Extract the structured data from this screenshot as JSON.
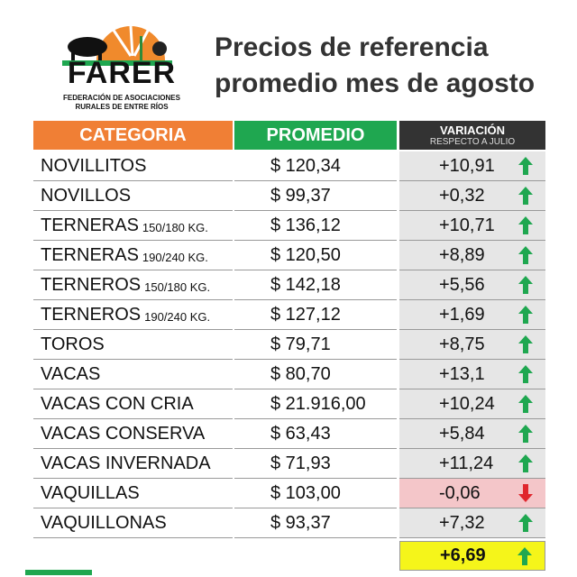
{
  "logo": {
    "name": "FARER",
    "subtitle_1": "FEDERACIÓN DE ASOCIACIONES",
    "subtitle_2": "RURALES DE ENTRE RÍOS"
  },
  "header": {
    "title_1": "Precios de referencia",
    "title_2": "promedio mes de agosto"
  },
  "table": {
    "columns": {
      "category": "CATEGORIA",
      "average": "PROMEDIO",
      "variation": "VARIACIÓN",
      "variation_note": "RESPECTO A JULIO"
    },
    "rows": [
      {
        "category": "NOVILLITOS",
        "price": "$ 120,34",
        "variation": "+10,91"
      },
      {
        "category": "NOVILLOS",
        "price": "$ 99,37",
        "variation": "+0,32"
      },
      {
        "category": "TERNERAS",
        "detail": "150/180 KG.",
        "price": "$ 136,12",
        "variation": "+10,71"
      },
      {
        "category": "TERNERAS",
        "detail": "190/240 KG.",
        "price": "$ 120,50",
        "variation": "+8,89"
      },
      {
        "category": "TERNEROS",
        "detail": "150/180 KG.",
        "price": "$ 142,18",
        "variation": "+5,56"
      },
      {
        "category": "TERNEROS",
        "detail": "190/240 KG.",
        "price": "$ 127,12",
        "variation": "+1,69"
      },
      {
        "category": "TOROS",
        "price": "$ 79,71",
        "variation": "+8,75"
      },
      {
        "category": "VACAS",
        "price": "$ 80,70",
        "variation": "+13,1"
      },
      {
        "category": "VACAS CON CRIA",
        "price": "$ 21.916,00",
        "variation": "+10,24"
      },
      {
        "category": "VACAS CONSERVA",
        "price": "$ 63,43",
        "variation": "+5,84"
      },
      {
        "category": "VACAS INVERNADA",
        "price": "$ 71,93",
        "variation": "+11,24"
      },
      {
        "category": "VAQUILLAS",
        "price": "$ 103,00",
        "variation": "-0,06"
      },
      {
        "category": "VAQUILLONAS",
        "price": "$ 93,37",
        "variation": "+7,32"
      }
    ],
    "total_variation": "+6,69"
  }
}
